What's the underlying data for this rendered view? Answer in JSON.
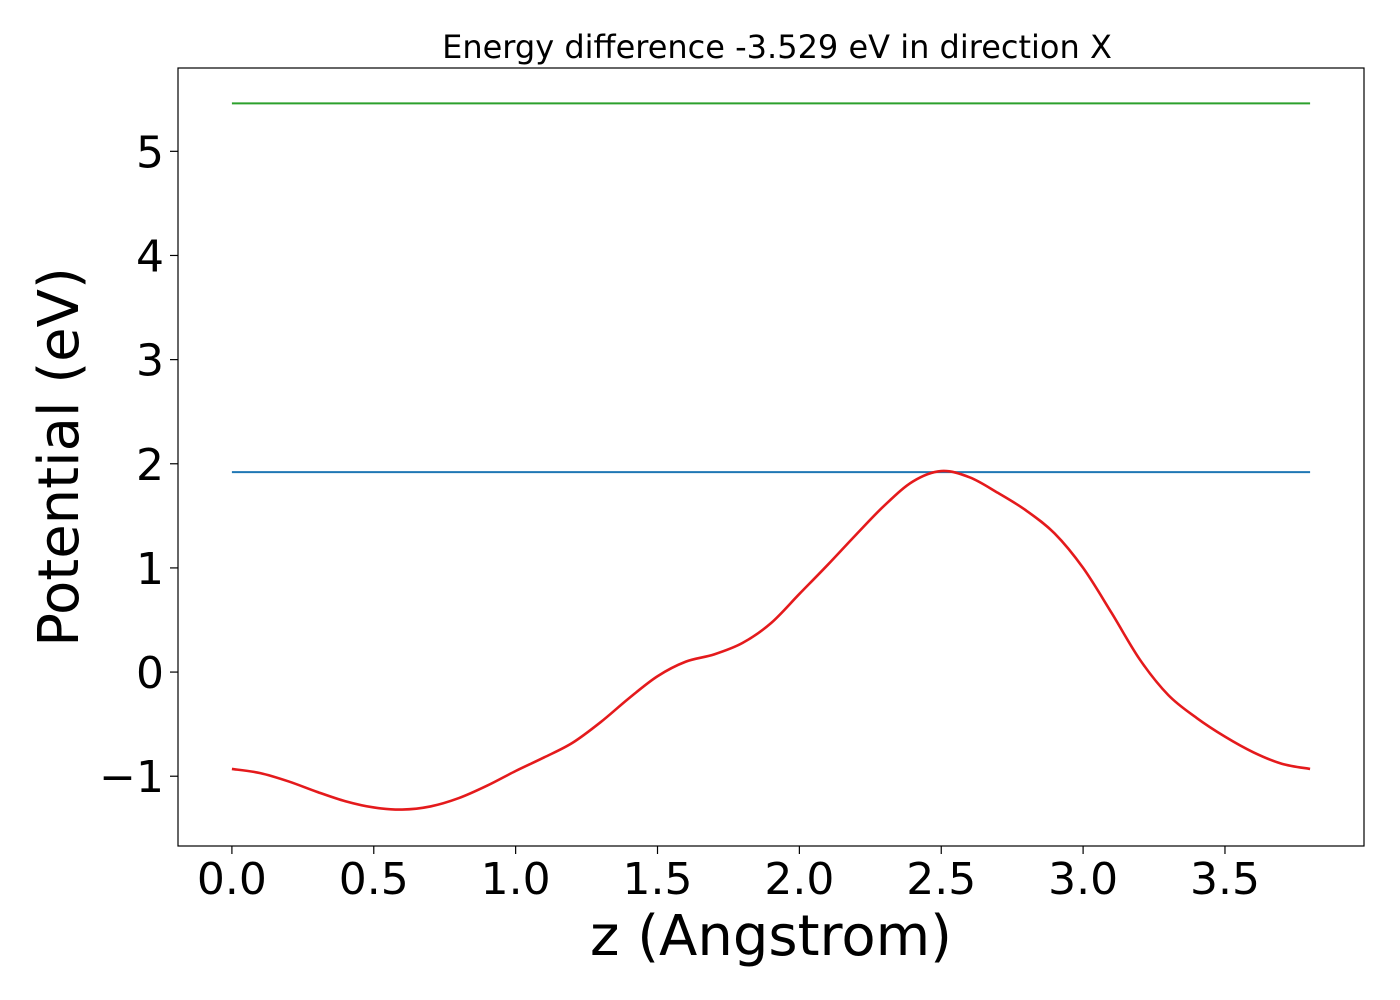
{
  "chart_data": {
    "type": "line",
    "title": "Energy difference -3.529 eV in direction X",
    "xlabel": "z (Angstrom)",
    "ylabel": "Potential (eV)",
    "xlim": [
      -0.19,
      3.99
    ],
    "ylim": [
      -1.67,
      5.8
    ],
    "xticks": [
      0.0,
      0.5,
      1.0,
      1.5,
      2.0,
      2.5,
      3.0,
      3.5
    ],
    "xtick_labels": [
      "0.0",
      "0.5",
      "1.0",
      "1.5",
      "2.0",
      "2.5",
      "3.0",
      "3.5"
    ],
    "yticks": [
      -1,
      0,
      1,
      2,
      3,
      4,
      5
    ],
    "ytick_labels": [
      "−1",
      "0",
      "1",
      "2",
      "3",
      "4",
      "5"
    ],
    "grid": false,
    "series": [
      {
        "color": "#2ca02c",
        "style": "hline",
        "y": 5.46,
        "x_range": [
          0.0,
          3.8
        ]
      },
      {
        "color": "#1f77b4",
        "style": "hline",
        "y": 1.92,
        "x_range": [
          0.0,
          3.8
        ]
      },
      {
        "color": "#e41a1c",
        "style": "curve",
        "x": [
          0.0,
          0.1,
          0.2,
          0.3,
          0.4,
          0.5,
          0.6,
          0.7,
          0.8,
          0.9,
          1.0,
          1.1,
          1.2,
          1.3,
          1.4,
          1.5,
          1.6,
          1.7,
          1.8,
          1.9,
          2.0,
          2.1,
          2.2,
          2.3,
          2.4,
          2.5,
          2.6,
          2.7,
          2.8,
          2.9,
          3.0,
          3.1,
          3.2,
          3.3,
          3.4,
          3.5,
          3.6,
          3.7,
          3.8
        ],
        "y": [
          -0.93,
          -0.97,
          -1.05,
          -1.15,
          -1.24,
          -1.3,
          -1.32,
          -1.29,
          -1.21,
          -1.09,
          -0.95,
          -0.82,
          -0.68,
          -0.48,
          -0.25,
          -0.04,
          0.1,
          0.17,
          0.28,
          0.47,
          0.75,
          1.03,
          1.32,
          1.6,
          1.83,
          1.93,
          1.87,
          1.72,
          1.55,
          1.33,
          1.0,
          0.57,
          0.12,
          -0.22,
          -0.44,
          -0.62,
          -0.77,
          -0.88,
          -0.93
        ]
      }
    ]
  }
}
